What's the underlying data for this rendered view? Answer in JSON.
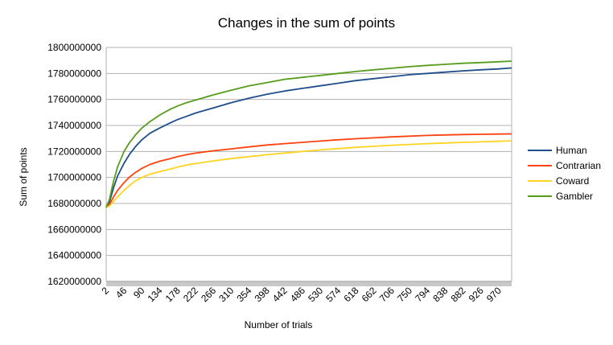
{
  "chart_data": {
    "type": "line",
    "title": "Changes in the sum of points",
    "xlabel": "Number of trials",
    "ylabel": "Sum of points",
    "ylim": [
      1620000000,
      1800000000
    ],
    "yticks": [
      "1620000000",
      "1640000000",
      "1660000000",
      "1680000000",
      "1700000000",
      "1720000000",
      "1740000000",
      "1760000000",
      "1780000000",
      "1800000000"
    ],
    "xlim": [
      2,
      1002
    ],
    "xticks": [
      "2",
      "46",
      "90",
      "134",
      "178",
      "222",
      "266",
      "310",
      "354",
      "398",
      "442",
      "486",
      "530",
      "574",
      "618",
      "662",
      "706",
      "750",
      "794",
      "838",
      "882",
      "926",
      "970"
    ],
    "grid": "horizontal",
    "legend_position": "right",
    "series": [
      {
        "name": "Human",
        "color": "#1f4e8c",
        "points": [
          [
            2,
            1677000000
          ],
          [
            10,
            1681000000
          ],
          [
            20,
            1692000000
          ],
          [
            30,
            1701000000
          ],
          [
            46,
            1711000000
          ],
          [
            60,
            1718000000
          ],
          [
            75,
            1724000000
          ],
          [
            90,
            1729000000
          ],
          [
            110,
            1734000000
          ],
          [
            134,
            1738000000
          ],
          [
            160,
            1742000000
          ],
          [
            178,
            1744500000
          ],
          [
            200,
            1747000000
          ],
          [
            222,
            1749500000
          ],
          [
            266,
            1753500000
          ],
          [
            310,
            1757500000
          ],
          [
            354,
            1761000000
          ],
          [
            398,
            1764000000
          ],
          [
            442,
            1766500000
          ],
          [
            486,
            1768500000
          ],
          [
            530,
            1770500000
          ],
          [
            574,
            1772500000
          ],
          [
            618,
            1774500000
          ],
          [
            662,
            1776000000
          ],
          [
            706,
            1777500000
          ],
          [
            750,
            1779000000
          ],
          [
            794,
            1780000000
          ],
          [
            838,
            1781000000
          ],
          [
            882,
            1782000000
          ],
          [
            926,
            1782800000
          ],
          [
            970,
            1783500000
          ],
          [
            1002,
            1784200000
          ]
        ]
      },
      {
        "name": "Contrarian",
        "color": "#ff420e",
        "points": [
          [
            2,
            1677000000
          ],
          [
            10,
            1679000000
          ],
          [
            20,
            1685000000
          ],
          [
            30,
            1690000000
          ],
          [
            46,
            1696000000
          ],
          [
            60,
            1700500000
          ],
          [
            75,
            1704000000
          ],
          [
            90,
            1707000000
          ],
          [
            110,
            1710000000
          ],
          [
            134,
            1712500000
          ],
          [
            160,
            1714500000
          ],
          [
            178,
            1716000000
          ],
          [
            200,
            1717500000
          ],
          [
            222,
            1718700000
          ],
          [
            266,
            1720500000
          ],
          [
            310,
            1722000000
          ],
          [
            354,
            1723500000
          ],
          [
            398,
            1725000000
          ],
          [
            442,
            1726000000
          ],
          [
            486,
            1727000000
          ],
          [
            530,
            1728000000
          ],
          [
            574,
            1729000000
          ],
          [
            618,
            1729800000
          ],
          [
            662,
            1730500000
          ],
          [
            706,
            1731200000
          ],
          [
            750,
            1731800000
          ],
          [
            794,
            1732300000
          ],
          [
            838,
            1732700000
          ],
          [
            882,
            1733000000
          ],
          [
            926,
            1733200000
          ],
          [
            970,
            1733400000
          ],
          [
            1002,
            1733500000
          ]
        ]
      },
      {
        "name": "Coward",
        "color": "#ffd320",
        "points": [
          [
            2,
            1677000000
          ],
          [
            10,
            1678000000
          ],
          [
            20,
            1681500000
          ],
          [
            30,
            1685000000
          ],
          [
            46,
            1690000000
          ],
          [
            60,
            1694000000
          ],
          [
            75,
            1697500000
          ],
          [
            90,
            1700000000
          ],
          [
            110,
            1702500000
          ],
          [
            134,
            1704500000
          ],
          [
            160,
            1706500000
          ],
          [
            178,
            1708000000
          ],
          [
            200,
            1709500000
          ],
          [
            222,
            1710700000
          ],
          [
            266,
            1712700000
          ],
          [
            310,
            1714500000
          ],
          [
            354,
            1716000000
          ],
          [
            398,
            1717500000
          ],
          [
            442,
            1718800000
          ],
          [
            486,
            1720000000
          ],
          [
            530,
            1721200000
          ],
          [
            574,
            1722200000
          ],
          [
            618,
            1723200000
          ],
          [
            662,
            1724000000
          ],
          [
            706,
            1724800000
          ],
          [
            750,
            1725400000
          ],
          [
            794,
            1726000000
          ],
          [
            838,
            1726500000
          ],
          [
            882,
            1727000000
          ],
          [
            926,
            1727400000
          ],
          [
            970,
            1727800000
          ],
          [
            1002,
            1728200000
          ]
        ]
      },
      {
        "name": "Gambler",
        "color": "#579d1c",
        "points": [
          [
            2,
            1677000000
          ],
          [
            10,
            1683000000
          ],
          [
            20,
            1697000000
          ],
          [
            30,
            1708000000
          ],
          [
            46,
            1720000000
          ],
          [
            60,
            1727000000
          ],
          [
            75,
            1733000000
          ],
          [
            90,
            1738000000
          ],
          [
            110,
            1743000000
          ],
          [
            134,
            1748000000
          ],
          [
            160,
            1752500000
          ],
          [
            178,
            1755000000
          ],
          [
            200,
            1757500000
          ],
          [
            222,
            1759500000
          ],
          [
            266,
            1763500000
          ],
          [
            310,
            1767000000
          ],
          [
            354,
            1770500000
          ],
          [
            398,
            1773000000
          ],
          [
            442,
            1775500000
          ],
          [
            486,
            1777000000
          ],
          [
            530,
            1778500000
          ],
          [
            574,
            1780000000
          ],
          [
            618,
            1781500000
          ],
          [
            662,
            1782800000
          ],
          [
            706,
            1784000000
          ],
          [
            750,
            1785200000
          ],
          [
            794,
            1786200000
          ],
          [
            838,
            1787000000
          ],
          [
            882,
            1787800000
          ],
          [
            926,
            1788400000
          ],
          [
            970,
            1789000000
          ],
          [
            1002,
            1789500000
          ]
        ]
      }
    ]
  }
}
